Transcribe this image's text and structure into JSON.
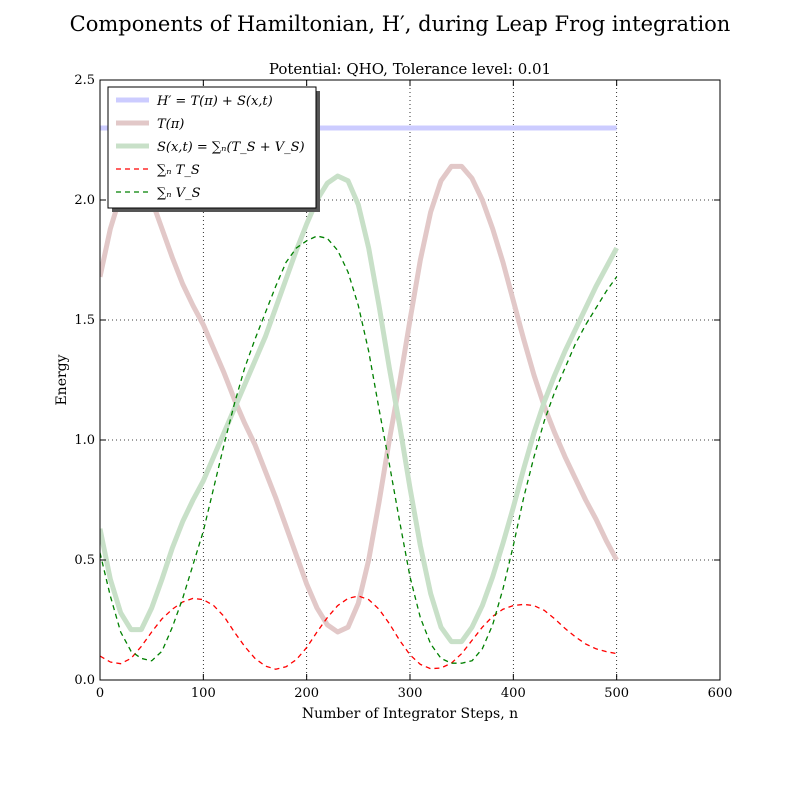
{
  "chart_data": {
    "type": "line",
    "title": "Components of Hamiltonian, H′, during Leap Frog integration",
    "subtitle": "Potential: QHO, Tolerance level: 0.01",
    "xlabel": "Number of Integrator Steps, n",
    "ylabel": "Energy",
    "xlim": [
      0,
      600
    ],
    "ylim": [
      0,
      2.5
    ],
    "xticks": [
      0,
      100,
      200,
      300,
      400,
      500,
      600
    ],
    "yticks": [
      0.0,
      0.5,
      1.0,
      1.5,
      2.0,
      2.5
    ],
    "xtick_labels": [
      "0",
      "100",
      "200",
      "300",
      "400",
      "500",
      "600"
    ],
    "ytick_labels": [
      "0.0",
      "0.5",
      "1.0",
      "1.5",
      "2.0",
      "2.5"
    ],
    "grid": true,
    "legend_position": "top-left",
    "series": [
      {
        "name": "H′ = T(π) + S(x,t)",
        "color": "#ccccff",
        "style": "solid-thick",
        "x": [
          0,
          100,
          200,
          300,
          400,
          500
        ],
        "y": [
          2.3,
          2.3,
          2.3,
          2.3,
          2.3,
          2.3
        ]
      },
      {
        "name": "T(π)",
        "color": "#e2c8c8",
        "style": "solid-thick",
        "x": [
          0,
          10,
          20,
          30,
          40,
          50,
          60,
          70,
          80,
          90,
          100,
          110,
          120,
          130,
          140,
          150,
          160,
          170,
          180,
          190,
          200,
          210,
          220,
          230,
          240,
          250,
          260,
          270,
          280,
          290,
          300,
          310,
          320,
          330,
          340,
          350,
          360,
          370,
          380,
          390,
          400,
          410,
          420,
          430,
          440,
          450,
          460,
          470,
          480,
          490,
          500
        ],
        "y": [
          1.68,
          1.88,
          2.02,
          2.09,
          2.08,
          2.0,
          1.88,
          1.76,
          1.65,
          1.56,
          1.48,
          1.38,
          1.28,
          1.17,
          1.07,
          0.98,
          0.87,
          0.76,
          0.64,
          0.52,
          0.4,
          0.3,
          0.23,
          0.2,
          0.22,
          0.32,
          0.5,
          0.74,
          1.0,
          1.24,
          1.5,
          1.75,
          1.95,
          2.08,
          2.14,
          2.14,
          2.09,
          2.0,
          1.88,
          1.74,
          1.58,
          1.42,
          1.27,
          1.14,
          1.03,
          0.93,
          0.84,
          0.75,
          0.67,
          0.58,
          0.5
        ]
      },
      {
        "name": "S(x,t) = ∑ₙ(T_S + V_S)",
        "color": "#c8e0c8",
        "style": "solid-thick",
        "x": [
          0,
          10,
          20,
          30,
          40,
          50,
          60,
          70,
          80,
          90,
          100,
          110,
          120,
          130,
          140,
          150,
          160,
          170,
          180,
          190,
          200,
          210,
          220,
          230,
          240,
          250,
          260,
          270,
          280,
          290,
          300,
          310,
          320,
          330,
          340,
          350,
          360,
          370,
          380,
          390,
          400,
          410,
          420,
          430,
          440,
          450,
          460,
          470,
          480,
          490,
          500
        ],
        "y": [
          0.63,
          0.42,
          0.28,
          0.21,
          0.21,
          0.3,
          0.42,
          0.55,
          0.66,
          0.75,
          0.83,
          0.93,
          1.03,
          1.13,
          1.23,
          1.33,
          1.43,
          1.55,
          1.67,
          1.79,
          1.9,
          2.0,
          2.07,
          2.1,
          2.08,
          1.98,
          1.8,
          1.56,
          1.3,
          1.06,
          0.8,
          0.56,
          0.36,
          0.22,
          0.16,
          0.16,
          0.22,
          0.31,
          0.43,
          0.57,
          0.72,
          0.88,
          1.03,
          1.16,
          1.27,
          1.37,
          1.46,
          1.55,
          1.64,
          1.72,
          1.8
        ]
      },
      {
        "name": "∑ₙ T_S",
        "color": "#ff0000",
        "style": "dashed",
        "x": [
          0,
          10,
          20,
          30,
          40,
          50,
          60,
          70,
          80,
          90,
          100,
          110,
          120,
          130,
          140,
          150,
          160,
          170,
          180,
          190,
          200,
          210,
          220,
          230,
          240,
          250,
          260,
          270,
          280,
          290,
          300,
          310,
          320,
          330,
          340,
          350,
          360,
          370,
          380,
          390,
          400,
          410,
          420,
          430,
          440,
          450,
          460,
          470,
          480,
          490,
          500
        ],
        "y": [
          0.1,
          0.075,
          0.068,
          0.09,
          0.14,
          0.2,
          0.255,
          0.295,
          0.325,
          0.34,
          0.335,
          0.31,
          0.265,
          0.2,
          0.14,
          0.09,
          0.058,
          0.045,
          0.055,
          0.085,
          0.135,
          0.2,
          0.26,
          0.31,
          0.34,
          0.35,
          0.335,
          0.295,
          0.235,
          0.165,
          0.105,
          0.065,
          0.047,
          0.05,
          0.07,
          0.11,
          0.165,
          0.22,
          0.265,
          0.295,
          0.31,
          0.315,
          0.31,
          0.29,
          0.255,
          0.215,
          0.18,
          0.15,
          0.13,
          0.118,
          0.11
        ]
      },
      {
        "name": "∑ₙ V_S",
        "color": "#008000",
        "style": "dashed",
        "x": [
          0,
          10,
          20,
          30,
          40,
          50,
          60,
          70,
          80,
          90,
          100,
          110,
          120,
          130,
          140,
          150,
          160,
          170,
          180,
          190,
          200,
          210,
          220,
          230,
          240,
          250,
          260,
          270,
          280,
          290,
          300,
          310,
          320,
          330,
          340,
          350,
          360,
          370,
          380,
          390,
          400,
          410,
          420,
          430,
          440,
          450,
          460,
          470,
          480,
          490,
          500
        ],
        "y": [
          0.53,
          0.35,
          0.2,
          0.12,
          0.09,
          0.08,
          0.12,
          0.22,
          0.34,
          0.48,
          0.62,
          0.8,
          0.98,
          1.15,
          1.3,
          1.42,
          1.53,
          1.64,
          1.74,
          1.8,
          1.83,
          1.85,
          1.84,
          1.79,
          1.7,
          1.56,
          1.37,
          1.13,
          0.9,
          0.66,
          0.43,
          0.26,
          0.15,
          0.09,
          0.07,
          0.07,
          0.08,
          0.13,
          0.23,
          0.38,
          0.56,
          0.76,
          0.93,
          1.08,
          1.2,
          1.3,
          1.4,
          1.48,
          1.55,
          1.62,
          1.68
        ]
      }
    ]
  }
}
